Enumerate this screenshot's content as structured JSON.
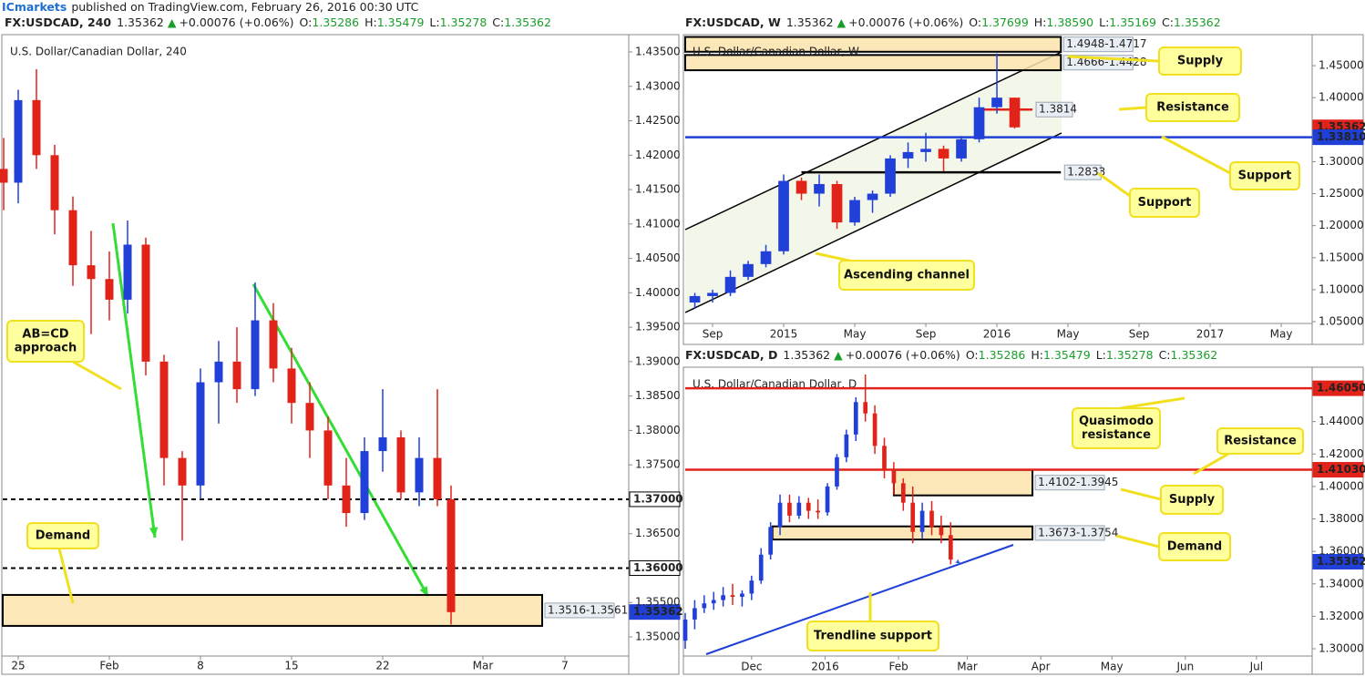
{
  "header": {
    "publisher": "ICmarkets",
    "published": "published on TradingView.com, February 26, 2016 00:30 UTC"
  },
  "chart_data": [
    {
      "type": "candlestick",
      "symbol": "FX:USDCAD, 240",
      "last": "1.35362",
      "arrow": "▲",
      "change": "+0.00076 (+0.06%)",
      "quote": [
        {
          "label": "O:",
          "value": "1.35286"
        },
        {
          "label": "H:",
          "value": "1.35479"
        },
        {
          "label": "L:",
          "value": "1.35278"
        },
        {
          "label": "C:",
          "value": "1.35362"
        }
      ],
      "title": "U.S. Dollar/Canadian Dollar, 240",
      "up_color": "#2140d8",
      "down_color": "#e2231a",
      "x": [
        -0.8,
        0,
        1,
        2,
        3,
        4,
        5,
        6,
        7,
        8,
        9,
        10,
        11,
        12,
        13,
        14,
        15,
        16,
        17,
        18,
        19,
        20,
        21,
        22,
        23,
        23.75
      ],
      "open": [
        1.418,
        1.416,
        1.428,
        1.42,
        1.412,
        1.404,
        1.402,
        1.399,
        1.407,
        1.39,
        1.376,
        1.372,
        1.387,
        1.39,
        1.386,
        1.396,
        1.389,
        1.384,
        1.38,
        1.372,
        1.368,
        1.377,
        1.379,
        1.371,
        1.376,
        1.37
      ],
      "high": [
        1.4225,
        1.4295,
        1.4325,
        1.4215,
        1.414,
        1.409,
        1.406,
        1.4105,
        1.408,
        1.391,
        1.377,
        1.389,
        1.393,
        1.395,
        1.4015,
        1.3985,
        1.392,
        1.387,
        1.382,
        1.376,
        1.379,
        1.386,
        1.38,
        1.379,
        1.386,
        1.372
      ],
      "low": [
        1.412,
        1.413,
        1.418,
        1.4085,
        1.401,
        1.394,
        1.396,
        1.397,
        1.388,
        1.372,
        1.364,
        1.37,
        1.381,
        1.384,
        1.385,
        1.387,
        1.381,
        1.376,
        1.37,
        1.366,
        1.367,
        1.374,
        1.37,
        1.369,
        1.369,
        1.3518
      ],
      "close": [
        1.416,
        1.428,
        1.42,
        1.412,
        1.404,
        1.402,
        1.399,
        1.407,
        1.39,
        1.376,
        1.372,
        1.387,
        1.39,
        1.386,
        1.396,
        1.389,
        1.384,
        1.38,
        1.372,
        1.368,
        1.377,
        1.379,
        1.371,
        1.376,
        1.37,
        1.3536
      ],
      "xlim": [
        -0.85,
        33.5
      ],
      "ylim": [
        1.34722,
        1.43725
      ],
      "xticks": [
        {
          "value": 0,
          "label": "25"
        },
        {
          "value": 5,
          "label": "Feb"
        },
        {
          "value": 10,
          "label": "8"
        },
        {
          "value": 15,
          "label": "15"
        },
        {
          "value": 20,
          "label": "22"
        },
        {
          "value": 25.5,
          "label": "Mar"
        },
        {
          "value": 30,
          "label": "7"
        }
      ],
      "yticks": [
        {
          "value": 1.35,
          "label": "1.35000"
        },
        {
          "value": 1.355,
          "label": "1.35500"
        },
        {
          "value": 1.365,
          "label": "1.36500"
        },
        {
          "value": 1.375,
          "label": "1.37500"
        },
        {
          "value": 1.38,
          "label": "1.38000"
        },
        {
          "value": 1.385,
          "label": "1.38500"
        },
        {
          "value": 1.39,
          "label": "1.39000"
        },
        {
          "value": 1.395,
          "label": "1.39500"
        },
        {
          "value": 1.4,
          "label": "1.40000"
        },
        {
          "value": 1.405,
          "label": "1.40500"
        },
        {
          "value": 1.41,
          "label": "1.41000"
        },
        {
          "value": 1.415,
          "label": "1.41500"
        },
        {
          "value": 1.42,
          "label": "1.42000"
        },
        {
          "value": 1.425,
          "label": "1.42500"
        },
        {
          "value": 1.43,
          "label": "1.43000"
        },
        {
          "value": 1.435,
          "label": "1.43500"
        }
      ],
      "levels": [
        {
          "value": 1.37,
          "label": "1.37000",
          "style": "dashed",
          "color": "#000000",
          "label_at": "axis",
          "label_bg": "#ffffff"
        },
        {
          "value": 1.36,
          "label": "1.36000",
          "style": "dashed",
          "color": "#000000",
          "label_at": "axis",
          "label_bg": "#ffffff"
        },
        {
          "value": 1.35362,
          "label": "1.35362",
          "style": "none",
          "color": "#2140d8",
          "label_at": "axis",
          "label_bg": "#2140d8"
        }
      ],
      "zones": [
        {
          "high": 1.3561,
          "low": 1.3516,
          "x": [
            -0.85,
            28.75
          ],
          "label": "1.3516-1.3561"
        }
      ],
      "annotations": [
        [
          "AB=CD",
          "approach"
        ],
        [
          "Demand"
        ]
      ]
    },
    {
      "type": "candlestick",
      "symbol": "FX:USDCAD, W",
      "last": "1.35362",
      "arrow": "▲",
      "change": "+0.00076 (+0.06%)",
      "quote": [
        {
          "label": "O:",
          "value": "1.37699"
        },
        {
          "label": "H:",
          "value": "1.38590"
        },
        {
          "label": "L:",
          "value": "1.35169"
        },
        {
          "label": "C:",
          "value": "1.35362"
        }
      ],
      "title": "U.S. Dollar/Canadian Dollar, W",
      "up_color": "#2140d8",
      "down_color": "#e2231a",
      "x": [
        -1,
        0,
        1,
        2,
        3,
        4,
        5,
        6,
        7,
        8,
        9,
        10,
        11,
        12,
        13,
        14,
        15,
        16,
        17
      ],
      "open": [
        1.08,
        1.09,
        1.095,
        1.12,
        1.14,
        1.16,
        1.27,
        1.25,
        1.265,
        1.205,
        1.24,
        1.25,
        1.305,
        1.315,
        1.32,
        1.305,
        1.335,
        1.385,
        1.4
      ],
      "high": [
        1.095,
        1.1,
        1.13,
        1.145,
        1.17,
        1.28,
        1.275,
        1.28,
        1.27,
        1.245,
        1.255,
        1.31,
        1.33,
        1.345,
        1.325,
        1.34,
        1.4,
        1.469,
        1.4
      ],
      "low": [
        1.07,
        1.08,
        1.09,
        1.115,
        1.135,
        1.155,
        1.24,
        1.23,
        1.195,
        1.2,
        1.22,
        1.245,
        1.29,
        1.3,
        1.285,
        1.3,
        1.33,
        1.375,
        1.3517
      ],
      "close": [
        1.09,
        1.095,
        1.12,
        1.14,
        1.16,
        1.27,
        1.25,
        1.265,
        1.205,
        1.24,
        1.25,
        1.305,
        1.315,
        1.32,
        1.305,
        1.335,
        1.385,
        1.4,
        1.3536
      ],
      "xlim": [
        -1.54,
        33.74
      ],
      "ylim": [
        1.0472,
        1.4956
      ],
      "xticks": [
        {
          "value": 0,
          "label": "Sep"
        },
        {
          "value": 4,
          "label": "2015"
        },
        {
          "value": 8,
          "label": "May"
        },
        {
          "value": 12,
          "label": "Sep"
        },
        {
          "value": 16,
          "label": "2016"
        },
        {
          "value": 20,
          "label": "May"
        },
        {
          "value": 24,
          "label": "Sep"
        },
        {
          "value": 28,
          "label": "2017"
        },
        {
          "value": 32,
          "label": "May"
        }
      ],
      "yticks": [
        {
          "value": 1.05,
          "label": "1.05000"
        },
        {
          "value": 1.1,
          "label": "1.10000"
        },
        {
          "value": 1.15,
          "label": "1.15000"
        },
        {
          "value": 1.2,
          "label": "1.20000"
        },
        {
          "value": 1.25,
          "label": "1.25000"
        },
        {
          "value": 1.3,
          "label": "1.30000"
        },
        {
          "value": 1.4,
          "label": "1.40000"
        },
        {
          "value": 1.45,
          "label": "1.45000"
        }
      ],
      "levels": [
        {
          "value": 1.35362,
          "label": "1.35362",
          "style": "none",
          "color": "#e2231a",
          "label_at": "axis",
          "label_bg": "#e2231a"
        },
        {
          "value": 1.3381,
          "label": "1.33810",
          "style": "solid",
          "color": "#1f3fd6",
          "label_at": "axis",
          "label_bg": "#1f3fd6"
        },
        {
          "value": 1.3814,
          "label": "1.3814",
          "style": "solid",
          "color": "#e2231a",
          "label_at": "end",
          "x": [
            15,
            18
          ]
        },
        {
          "value": 1.2833,
          "label": "1.2833",
          "style": "solid",
          "color": "#000000",
          "label_at": "end",
          "x": [
            5,
            19.6
          ]
        }
      ],
      "zones": [
        {
          "high": 1.4948,
          "low": 1.4717,
          "x": [
            -1.54,
            19.6
          ],
          "label": "1.4948-1.4717"
        },
        {
          "high": 1.4666,
          "low": 1.4428,
          "x": [
            -1.54,
            19.6
          ],
          "label": "1.4666-1.4428"
        }
      ],
      "annotations": [
        [
          "Supply"
        ],
        [
          "Resistance"
        ],
        [
          "Support"
        ],
        [
          "Support"
        ],
        [
          "Ascending channel"
        ]
      ]
    },
    {
      "type": "candlestick",
      "symbol": "FX:USDCAD, D",
      "last": "1.35362",
      "arrow": "▲",
      "change": "+0.00076 (+0.06%)",
      "quote": [
        {
          "label": "O:",
          "value": "1.35286"
        },
        {
          "label": "H:",
          "value": "1.35479"
        },
        {
          "label": "L:",
          "value": "1.35278"
        },
        {
          "label": "C:",
          "value": "1.35362"
        }
      ],
      "title": "U.S. Dollar/Canadian Dollar, D",
      "up_color": "#2140d8",
      "down_color": "#e2231a",
      "x": [
        -28,
        -24,
        -20,
        -16,
        -12,
        -8,
        -4,
        0,
        4,
        8,
        12,
        16,
        20,
        24,
        28,
        32,
        36,
        40,
        44,
        48,
        52,
        56,
        60,
        64,
        68,
        72,
        76,
        80,
        84,
        87
      ],
      "open": [
        1.305,
        1.318,
        1.325,
        1.328,
        1.33,
        1.333,
        1.332,
        1.334,
        1.342,
        1.358,
        1.375,
        1.39,
        1.382,
        1.39,
        1.385,
        1.384,
        1.4,
        1.418,
        1.432,
        1.452,
        1.445,
        1.425,
        1.41,
        1.402,
        1.39,
        1.372,
        1.385,
        1.375,
        1.37,
        1.3529
      ],
      "high": [
        1.322,
        1.33,
        1.333,
        1.335,
        1.338,
        1.34,
        1.336,
        1.345,
        1.362,
        1.378,
        1.395,
        1.395,
        1.394,
        1.393,
        1.392,
        1.402,
        1.42,
        1.435,
        1.455,
        1.469,
        1.45,
        1.43,
        1.415,
        1.405,
        1.4,
        1.39,
        1.391,
        1.382,
        1.378,
        1.3548
      ],
      "low": [
        1.3,
        1.312,
        1.322,
        1.324,
        1.326,
        1.327,
        1.326,
        1.33,
        1.34,
        1.355,
        1.37,
        1.378,
        1.38,
        1.38,
        1.38,
        1.382,
        1.398,
        1.415,
        1.428,
        1.44,
        1.42,
        1.405,
        1.395,
        1.385,
        1.365,
        1.368,
        1.37,
        1.365,
        1.352,
        1.3528
      ],
      "close": [
        1.318,
        1.325,
        1.328,
        1.33,
        1.333,
        1.332,
        1.334,
        1.342,
        1.358,
        1.375,
        1.39,
        1.382,
        1.39,
        1.385,
        1.384,
        1.4,
        1.418,
        1.432,
        1.452,
        1.445,
        1.425,
        1.41,
        1.402,
        1.39,
        1.372,
        1.385,
        1.375,
        1.37,
        1.355,
        1.3536
      ],
      "xlim": [
        -28,
        236.5
      ],
      "ylim": [
        1.29551,
        1.47236
      ],
      "xticks": [
        {
          "value": 0,
          "label": "Dec"
        },
        {
          "value": 31,
          "label": "2016"
        },
        {
          "value": 62,
          "label": "Feb"
        },
        {
          "value": 91,
          "label": "Mar"
        },
        {
          "value": 122,
          "label": "Apr"
        },
        {
          "value": 152,
          "label": "May"
        },
        {
          "value": 183,
          "label": "Jun"
        },
        {
          "value": 213,
          "label": "Jul"
        }
      ],
      "yticks": [
        {
          "value": 1.3,
          "label": "1.30000"
        },
        {
          "value": 1.32,
          "label": "1.32000"
        },
        {
          "value": 1.34,
          "label": "1.34000"
        },
        {
          "value": 1.36,
          "label": "1.36000"
        },
        {
          "value": 1.38,
          "label": "1.38000"
        },
        {
          "value": 1.4,
          "label": "1.40000"
        },
        {
          "value": 1.42,
          "label": "1.42000"
        },
        {
          "value": 1.44,
          "label": "1.44000"
        }
      ],
      "levels": [
        {
          "value": 1.4605,
          "label": "1.46050",
          "style": "solid",
          "color": "#e2231a",
          "label_at": "axis",
          "label_bg": "#e2231a"
        },
        {
          "value": 1.4103,
          "label": "1.41030",
          "style": "solid",
          "color": "#e2231a",
          "label_at": "axis",
          "label_bg": "#e2231a"
        },
        {
          "value": 1.35362,
          "label": "1.35362",
          "style": "none",
          "color": "#2140d8",
          "label_at": "axis",
          "label_bg": "#2140d8"
        }
      ],
      "zones": [
        {
          "high": 1.4102,
          "low": 1.3945,
          "x": [
            60,
            118.5
          ],
          "label": "1.4102-1.3945"
        },
        {
          "high": 1.3754,
          "low": 1.3673,
          "x": [
            8.8,
            118.5
          ],
          "label": "1.3673-1.3754"
        }
      ],
      "annotations": [
        [
          "Quasimodo",
          "resistance"
        ],
        [
          "Resistance"
        ],
        [
          "Supply"
        ],
        [
          "Demand"
        ],
        [
          "Trendline support"
        ]
      ]
    }
  ]
}
